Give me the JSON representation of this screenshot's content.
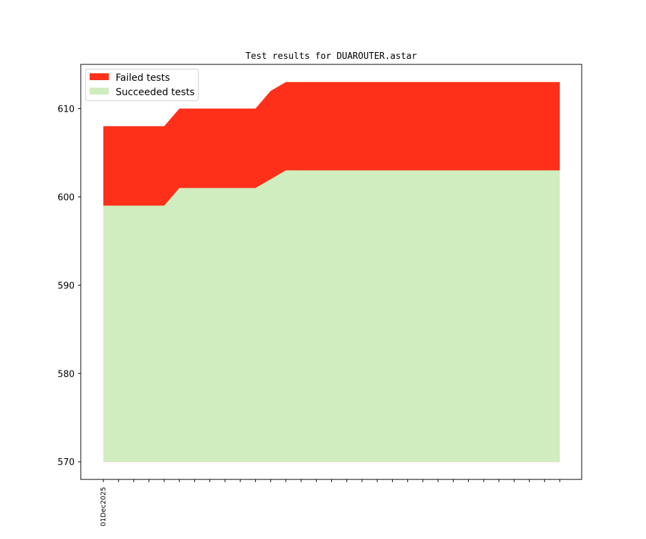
{
  "chart_data": {
    "type": "area",
    "title": "Test results for DUAROUTER.astar",
    "xlabel": "",
    "ylabel": "",
    "ylim": [
      568.0,
      615.0
    ],
    "yticks": [
      570,
      580,
      590,
      600,
      610
    ],
    "grid": false,
    "legend_position": "top-left",
    "x_index": [
      0,
      1,
      2,
      3,
      4,
      5,
      6,
      7,
      8,
      9,
      10,
      11,
      12,
      13,
      14,
      15,
      16,
      17,
      18,
      19,
      20,
      21,
      22,
      23,
      24,
      25,
      26,
      27,
      28,
      29,
      30
    ],
    "x_tick_labels": [
      "01Dec2025",
      "",
      "",
      "",
      "",
      "",
      "",
      "",
      "",
      "",
      "",
      "",
      "",
      "",
      "",
      "",
      "",
      "",
      "",
      "",
      "",
      "",
      "",
      "",
      "",
      "",
      "",
      "",
      "",
      "",
      ""
    ],
    "baseline": 570,
    "series": [
      {
        "name": "Failed tests",
        "color": "#ff3019",
        "values": [
          608,
          608,
          608,
          608,
          608,
          610,
          610,
          610,
          610,
          610,
          610,
          612,
          613,
          613,
          613,
          613,
          613,
          613,
          613,
          613,
          613,
          613,
          613,
          613,
          613,
          613,
          613,
          613,
          613,
          613,
          613
        ]
      },
      {
        "name": "Succeeded tests",
        "color": "#cfedbf",
        "values": [
          599,
          599,
          599,
          599,
          599,
          601,
          601,
          601,
          601,
          601,
          601,
          602,
          603,
          603,
          603,
          603,
          603,
          603,
          603,
          603,
          603,
          603,
          603,
          603,
          603,
          603,
          603,
          603,
          603,
          603,
          603
        ]
      }
    ]
  }
}
